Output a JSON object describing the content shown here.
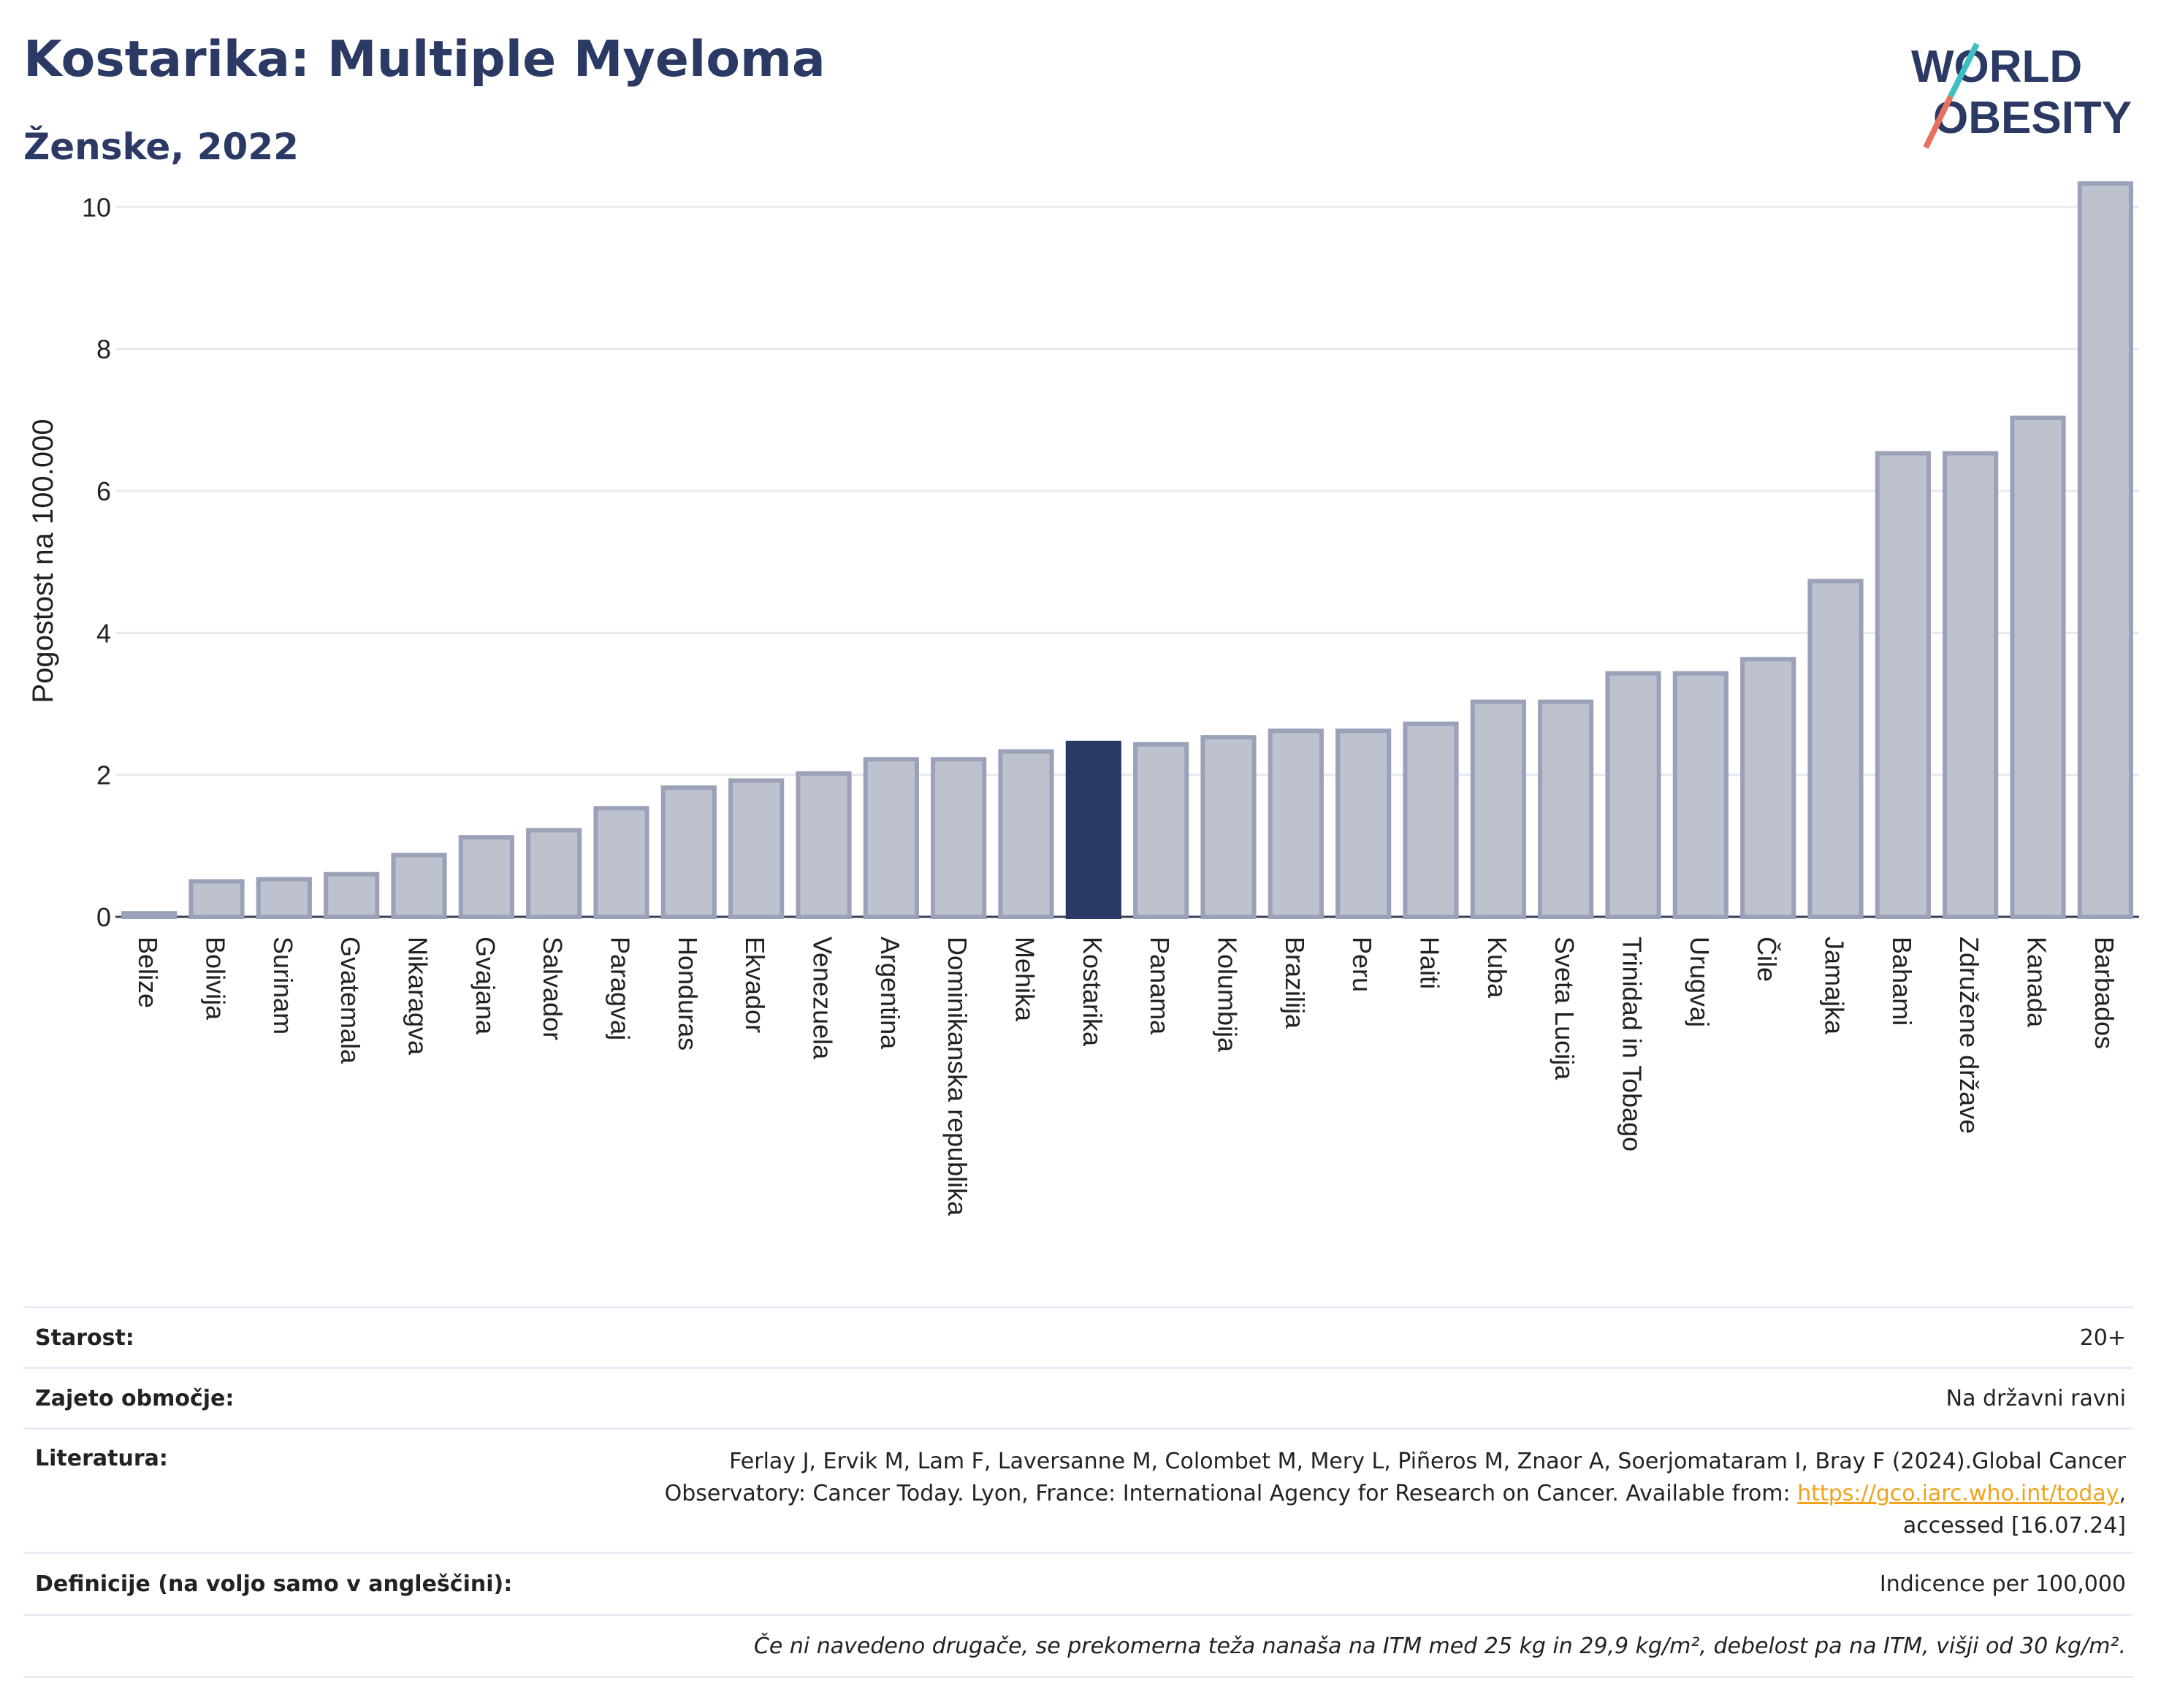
{
  "header": {
    "title": "Kostarika: Multiple Myeloma",
    "subtitle": "Ženske, 2022"
  },
  "logo": {
    "line1": "WORLD",
    "line2": "OBESITY"
  },
  "colors": {
    "bar": "#bec2cf",
    "bar_border": "#9aa1b8",
    "highlight": "#2b3a64",
    "grid": "#e8eaf0",
    "axis": "#3a3f55",
    "accent_teal": "#3cbfbf",
    "accent_red": "#e8705e"
  },
  "chart_data": {
    "type": "bar",
    "ylabel": "Pogostost na 100.000",
    "ylim": [
      0,
      10.6
    ],
    "yticks": [
      0,
      2,
      4,
      6,
      8,
      10
    ],
    "grid": true,
    "highlight": "Kostarika",
    "categories": [
      "Belize",
      "Bolivija",
      "Surinam",
      "Gvatemala",
      "Nikaragva",
      "Gvajana",
      "Salvador",
      "Paragvaj",
      "Honduras",
      "Ekvador",
      "Venezuela",
      "Argentina",
      "Dominikanska republika",
      "Mehika",
      "Kostarika",
      "Panama",
      "Kolumbija",
      "Brazilija",
      "Peru",
      "Haiti",
      "Kuba",
      "Sveta Lucija",
      "Trinidad in Tobago",
      "Urugvaj",
      "Čile",
      "Jamajka",
      "Bahami",
      "Združene države",
      "Kanada",
      "Barbados"
    ],
    "values": [
      0.05,
      0.5,
      0.53,
      0.6,
      0.87,
      1.12,
      1.22,
      1.53,
      1.82,
      1.92,
      2.02,
      2.22,
      2.22,
      2.33,
      2.45,
      2.43,
      2.53,
      2.62,
      2.62,
      2.72,
      3.03,
      3.03,
      3.43,
      3.43,
      3.63,
      4.73,
      6.53,
      6.53,
      7.03,
      10.33
    ]
  },
  "info": {
    "age_label": "Starost:",
    "age_value": "20+",
    "coverage_label": "Zajeto območje:",
    "coverage_value": "Na državni ravni",
    "lit_label": "Literatura:",
    "lit_text1": "Ferlay J, Ervik M, Lam F, Laversanne M, Colombet M, Mery L, Piñeros M, Znaor A, Soerjomataram I, Bray F (2024).Global Cancer Observatory: Cancer Today. Lyon, France: International Agency for Research on Cancer. Available from: ",
    "lit_link": "https://gco.iarc.who.int/today",
    "lit_text2": ", accessed [16.07.24]",
    "def_label": "Definicije (na voljo samo v angleščini):",
    "def_value": "Indicence per 100,000",
    "note": "Če ni navedeno drugače, se prekomerna teža nanaša na ITM med 25 kg in 29,9 kg/m², debelost pa na ITM, višji od 30 kg/m²."
  }
}
